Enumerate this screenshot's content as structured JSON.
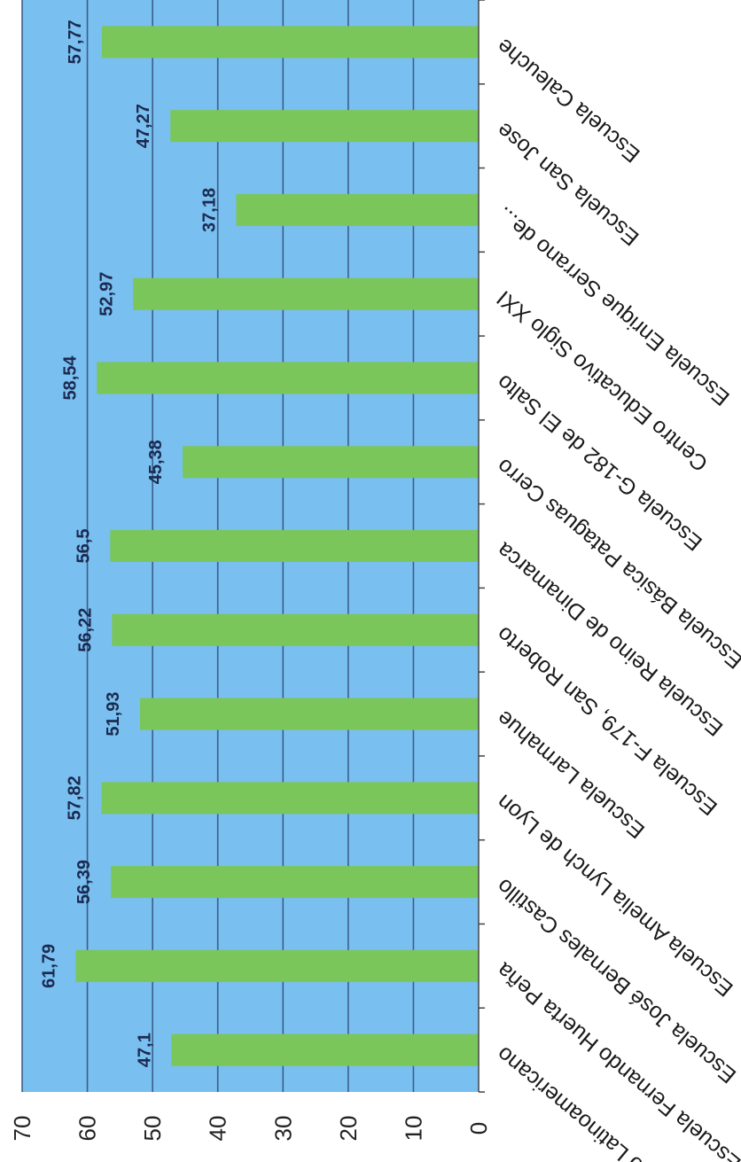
{
  "chart_data": {
    "type": "bar",
    "orientation": "horizontal",
    "title": "",
    "xlabel": "",
    "ylabel": "",
    "ylim": [
      0,
      70
    ],
    "ticks": [
      0,
      10,
      20,
      30,
      40,
      50,
      60,
      70
    ],
    "grid": true,
    "categories": [
      "Liceo Latinoamericano",
      "Escuela Fernando Huerta Peña",
      "Escuela José Bernales Castillo",
      "Escuela Amelia Lynch de Lyon",
      "Escuela Larmahue",
      "Escuela F-179, San Roberto",
      "Escuela Reino de Dinamarca",
      "Escuela Básica Pataguas Cerro",
      "Escuela G-182 de El Salto",
      "Centro Educativo Siglo XXI",
      "Escuela Enrique Serrano de...",
      "Escuela San Jose",
      "Escuela Caleuche"
    ],
    "values": [
      47.1,
      61.79,
      56.39,
      57.82,
      51.93,
      56.22,
      56.5,
      45.38,
      58.54,
      52.97,
      37.18,
      47.27,
      57.77
    ],
    "value_labels": [
      "47,1",
      "61,79",
      "56,39",
      "57,82",
      "51,93",
      "56,22",
      "56,5",
      "45,38",
      "58,54",
      "52,97",
      "37,18",
      "47,27",
      "57,77"
    ],
    "colors": {
      "bar": "#7ac65a",
      "plot_background": "#79bff0",
      "gridline": "#3b5f8a",
      "axis": "#444444"
    }
  }
}
